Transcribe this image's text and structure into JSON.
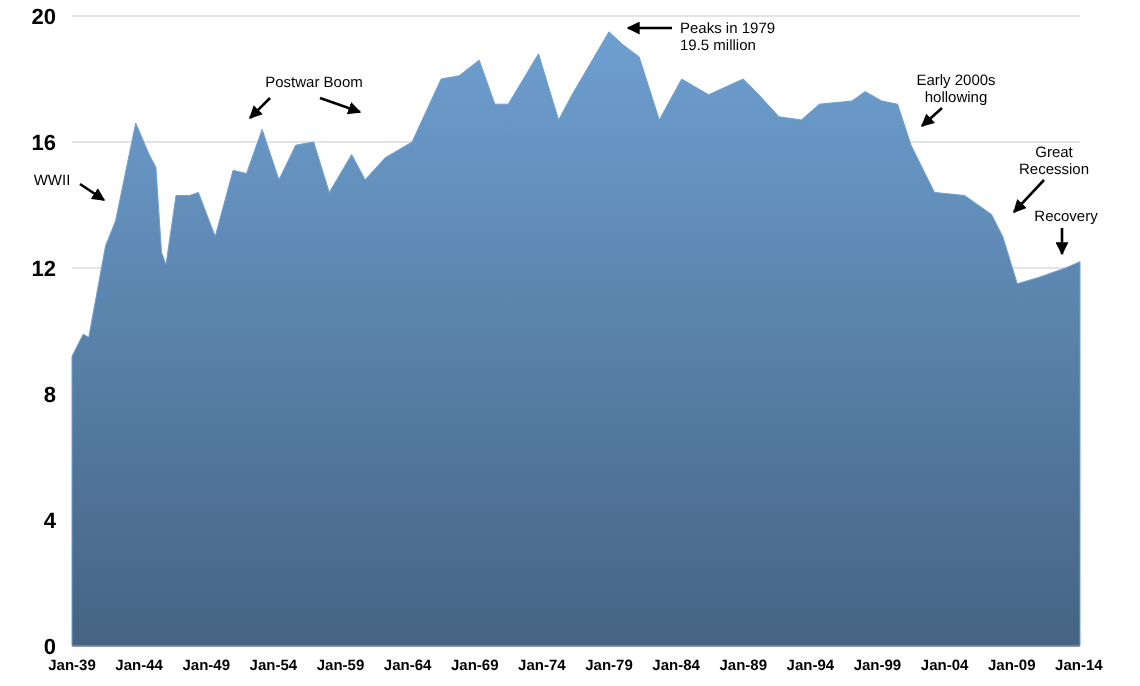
{
  "chart_data": {
    "type": "area",
    "x": [
      "1939-01",
      "1939-11",
      "1940-04",
      "1941-07",
      "1942-04",
      "1943-10",
      "1944-10",
      "1945-04",
      "1945-09",
      "1946-01",
      "1946-10",
      "1947-10",
      "1948-06",
      "1949-09",
      "1951-01",
      "1952-01",
      "1953-03",
      "1954-06",
      "1955-09",
      "1957-01",
      "1958-03",
      "1959-11",
      "1960-11",
      "1962-05",
      "1964-05",
      "1966-07",
      "1967-11",
      "1969-05",
      "1970-07",
      "1971-07",
      "1973-10",
      "1975-04",
      "1976-04",
      "1979-01",
      "1980-01",
      "1981-04",
      "1982-10",
      "1984-06",
      "1986-06",
      "1989-01",
      "1990-03",
      "1991-09",
      "1993-05",
      "1994-09",
      "1997-02",
      "1998-02",
      "1999-05",
      "2000-07",
      "2001-07",
      "2003-04",
      "2005-07",
      "2007-07",
      "2008-05",
      "2009-06",
      "2011-01",
      "2013-01",
      "2014-02"
    ],
    "series": [
      {
        "color": "#6e9fd0",
        "values": [
          9.2,
          9.9,
          9.8,
          12.7,
          13.5,
          16.6,
          15.6,
          15.2,
          12.5,
          12.1,
          14.3,
          14.3,
          14.4,
          13.0,
          15.1,
          15.0,
          16.4,
          14.8,
          15.9,
          16.0,
          14.4,
          15.6,
          14.8,
          15.5,
          16.0,
          18.0,
          18.1,
          18.6,
          17.2,
          17.2,
          18.8,
          16.7,
          17.5,
          19.5,
          19.1,
          18.7,
          16.7,
          18.0,
          17.5,
          18.0,
          17.5,
          16.8,
          16.7,
          17.2,
          17.3,
          17.6,
          17.3,
          17.2,
          15.9,
          14.4,
          14.3,
          13.7,
          13.0,
          11.5,
          11.7,
          12.0,
          12.2
        ]
      }
    ],
    "xlim": [
      "1939-01",
      "2014-02"
    ],
    "xticks": [
      {
        "value": "1939-01",
        "label": "Jan-39"
      },
      {
        "value": "1944-01",
        "label": "Jan-44"
      },
      {
        "value": "1949-01",
        "label": "Jan-49"
      },
      {
        "value": "1954-01",
        "label": "Jan-54"
      },
      {
        "value": "1959-01",
        "label": "Jan-59"
      },
      {
        "value": "1964-01",
        "label": "Jan-64"
      },
      {
        "value": "1969-01",
        "label": "Jan-69"
      },
      {
        "value": "1974-01",
        "label": "Jan-74"
      },
      {
        "value": "1979-01",
        "label": "Jan-79"
      },
      {
        "value": "1984-01",
        "label": "Jan-84"
      },
      {
        "value": "1989-01",
        "label": "Jan-89"
      },
      {
        "value": "1994-01",
        "label": "Jan-94"
      },
      {
        "value": "1999-01",
        "label": "Jan-99"
      },
      {
        "value": "2004-01",
        "label": "Jan-04"
      },
      {
        "value": "2009-01",
        "label": "Jan-09"
      },
      {
        "value": "2014-01",
        "label": "Jan-14"
      }
    ],
    "ylim": [
      0,
      20
    ],
    "yticks": [
      0,
      4,
      8,
      12,
      16,
      20
    ],
    "grid": "y",
    "annotations": [
      "WWII",
      "Postwar Boom",
      "Peaks in 1979\n19.5 million",
      "Early 2000s\nhollowing",
      "Great\nRecession",
      "Recovery"
    ]
  }
}
